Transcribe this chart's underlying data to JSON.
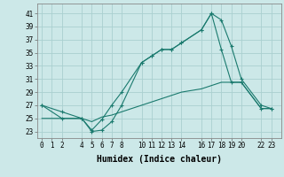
{
  "xlabel": "Humidex (Indice chaleur)",
  "bg_color": "#cce8e8",
  "grid_color": "#aad0d0",
  "line_color": "#1a7a6e",
  "xticks": [
    0,
    1,
    2,
    4,
    5,
    6,
    7,
    8,
    10,
    11,
    12,
    13,
    14,
    16,
    17,
    18,
    19,
    20,
    22,
    23
  ],
  "yticks": [
    23,
    25,
    27,
    29,
    31,
    33,
    35,
    37,
    39,
    41
  ],
  "ylim": [
    22.0,
    42.5
  ],
  "xlim": [
    -0.5,
    24.0
  ],
  "line1_x": [
    0,
    2,
    4,
    5,
    6,
    7,
    8,
    10,
    11,
    12,
    13,
    14,
    16,
    17,
    18,
    19,
    20,
    22,
    23
  ],
  "line1_y": [
    27.0,
    26.0,
    25.0,
    23.0,
    23.2,
    24.5,
    27.0,
    33.5,
    34.5,
    35.5,
    35.5,
    36.5,
    38.5,
    41.0,
    40.0,
    36.0,
    31.0,
    27.0,
    26.5
  ],
  "line2_x": [
    0,
    2,
    4,
    5,
    6,
    7,
    8,
    10,
    11,
    12,
    13,
    14,
    16,
    17,
    18,
    19,
    20,
    22,
    23
  ],
  "line2_y": [
    27.0,
    25.0,
    25.0,
    23.2,
    24.8,
    27.0,
    29.0,
    33.5,
    34.5,
    35.5,
    35.5,
    36.5,
    38.5,
    41.0,
    35.5,
    30.5,
    30.5,
    26.5,
    26.5
  ],
  "line3_x": [
    0,
    2,
    4,
    5,
    6,
    7,
    8,
    10,
    11,
    12,
    13,
    14,
    16,
    17,
    18,
    19,
    20,
    22,
    23
  ],
  "line3_y": [
    25.0,
    25.0,
    25.0,
    24.5,
    25.2,
    25.5,
    26.0,
    27.0,
    27.5,
    28.0,
    28.5,
    29.0,
    29.5,
    30.0,
    30.5,
    30.5,
    30.5,
    26.5,
    26.5
  ],
  "tick_fontsize": 5.5,
  "xlabel_fontsize": 7.0
}
